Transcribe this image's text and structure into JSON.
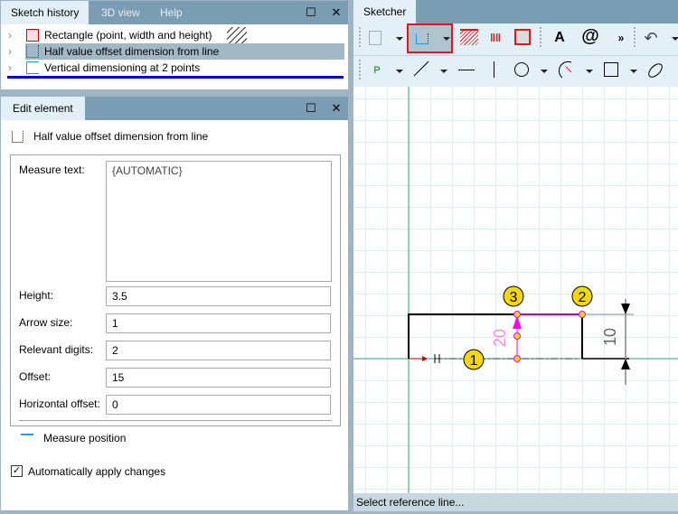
{
  "history_panel": {
    "tabs": [
      "Sketch history",
      "3D view",
      "Help"
    ],
    "items": [
      {
        "label": "Rectangle (point, width and height)",
        "icon": "rectangle-icon"
      },
      {
        "label": "Half value offset dimension from line",
        "icon": "half-offset-dimension-icon",
        "selected": true
      },
      {
        "label": "Vertical dimensioning at 2 points",
        "icon": "vertical-dimension-icon"
      }
    ]
  },
  "edit_panel": {
    "tab": "Edit element",
    "element_title": "Half value offset dimension from line",
    "fields": {
      "measure_text_label": "Measure text:",
      "measure_text": "{AUTOMATIC}",
      "height_label": "Height:",
      "height": "3.5",
      "arrow_label": "Arrow size:",
      "arrow": "1",
      "digits_label": "Relevant digits:",
      "digits": "2",
      "offset_label": "Offset:",
      "offset": "15",
      "hoffset_label": "Horizontal offset:",
      "hoffset": "0"
    },
    "measure_position": "Measure position",
    "auto_apply": "Automatically apply changes",
    "auto_apply_checked": true
  },
  "sketcher": {
    "tab": "Sketcher",
    "overflow": "»",
    "text_tool": "A",
    "at_tool": "@",
    "point_tool": "P",
    "canvas": {
      "markers": [
        "1",
        "2",
        "3"
      ],
      "dim_magenta": "20",
      "dim_vertical": "10"
    },
    "status": "Select reference line..."
  },
  "colors": {
    "accent_highlight": "#e8141c",
    "selection_line": "#0000e0",
    "dimension": "#ff00ff",
    "marker": "#f5d800"
  }
}
